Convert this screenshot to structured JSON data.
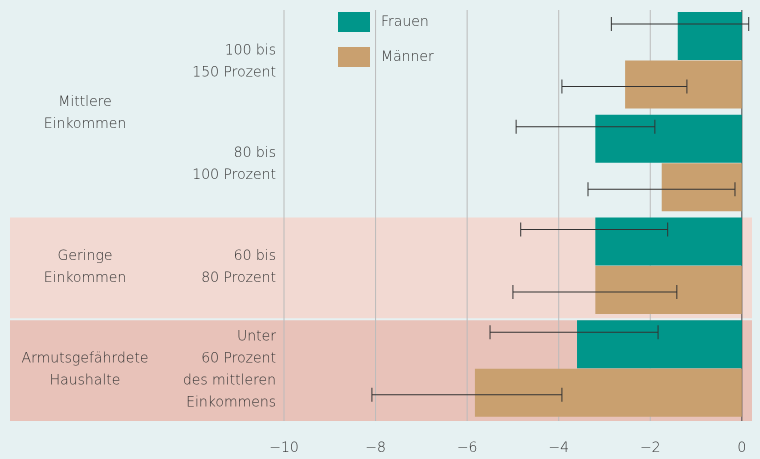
{
  "chart_data": {
    "type": "bar",
    "groups": [
      {
        "label": "Mittlere\nEinkommen",
        "span": 2,
        "color": null
      },
      {
        "label": "Geringe\nEinkommen",
        "span": 1,
        "color": "#f2d9d2"
      },
      {
        "label": "Armutsgefährdete\nHaushalte",
        "span": 1,
        "color": "#e8c2b9"
      }
    ],
    "categories": [
      "100 bis\n150 Prozent",
      "80 bis\n100 Prozent",
      "60 bis\n80 Prozent",
      "Unter\n60 Prozent\ndes mittleren\nEinkommens"
    ],
    "series": [
      {
        "name": "Frauen",
        "color": "#00968a",
        "values": [
          -1.4,
          -3.2,
          -3.2,
          -3.6
        ],
        "ci_low": [
          -2.85,
          -4.93,
          -4.83,
          -5.5
        ],
        "ci_high": [
          0.15,
          -1.9,
          -1.62,
          -1.83
        ]
      },
      {
        "name": "Männer",
        "color": "#c9a06f",
        "values": [
          -2.55,
          -1.75,
          -3.2,
          -5.83
        ],
        "ci_low": [
          -3.93,
          -3.36,
          -5.0,
          -8.08
        ],
        "ci_high": [
          -1.2,
          -0.15,
          -1.42,
          -3.93
        ]
      }
    ],
    "xlim": [
      -10,
      0.2
    ],
    "xticks": [
      {
        "value": -10,
        "label": "−10"
      },
      {
        "value": -8,
        "label": "−8"
      },
      {
        "value": -6,
        "label": "−6"
      },
      {
        "value": -4,
        "label": "−4"
      },
      {
        "value": -2,
        "label": "−2"
      },
      0
    ],
    "grid": true
  }
}
